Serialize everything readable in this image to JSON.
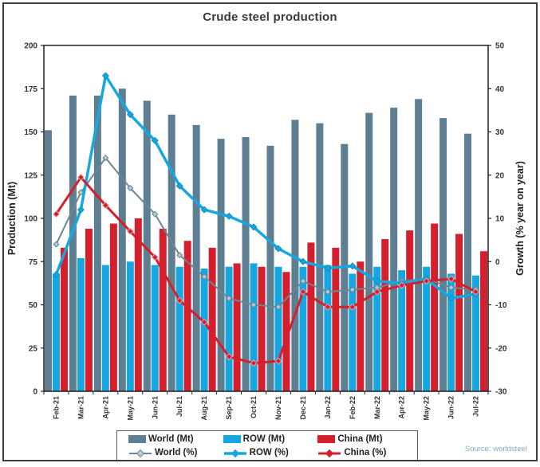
{
  "chart": {
    "title": "Crude steel production"
  },
  "source": {
    "text": "Source: worldsteel"
  },
  "colors": {
    "world_bar": "#5e7f92",
    "row_bar": "#17a7e0",
    "china_bar": "#d41f2d",
    "world_line": "#6b8795",
    "world_marker_fill": "#bcc7cd",
    "row_line": "#17a7e0",
    "row_marker_fill": "#17a7e0",
    "china_line": "#d41f2d",
    "china_marker_fill": "#d41f2d",
    "axis": "#1f1f1f",
    "tick_text": "#333333",
    "title_text": "#3a3a3a",
    "source_text": "#8aa9ba"
  },
  "legend": {
    "items": [
      {
        "label": "World (Mt)",
        "type": "bar",
        "color": "#5e7f92"
      },
      {
        "label": "ROW (Mt)",
        "type": "bar",
        "color": "#17a7e0"
      },
      {
        "label": "China (Mt)",
        "type": "bar",
        "color": "#d41f2d"
      },
      {
        "label": "World (%)",
        "type": "line",
        "color": "#6b8795",
        "marker_fill": "#bcc7cd",
        "width": 2
      },
      {
        "label": "ROW (%)",
        "type": "line",
        "color": "#17a7e0",
        "marker_fill": "#17a7e0",
        "width": 3.5
      },
      {
        "label": "China (%)",
        "type": "line",
        "color": "#d41f2d",
        "marker_fill": "#d41f2d",
        "width": 3
      }
    ]
  },
  "chart_data": {
    "type": "combo-bar-line",
    "title": "Crude steel production",
    "xlabel": "",
    "ylabel_left": "Production (Mt)",
    "ylabel_right": "Growth (% year on year)",
    "ylim_left": [
      0,
      200
    ],
    "ylim_right": [
      -30,
      50
    ],
    "left_ticks": [
      0,
      25,
      50,
      75,
      100,
      125,
      150,
      175,
      200
    ],
    "right_ticks": [
      -30,
      -20,
      -10,
      0,
      10,
      20,
      30,
      40,
      50
    ],
    "grid": false,
    "legend_position": "bottom",
    "categories": [
      "Feb-21",
      "Mar-21",
      "Apr-21",
      "May-21",
      "Jun-21",
      "Jul-21",
      "Aug-21",
      "Sep-21",
      "Oct-21",
      "Nov-21",
      "Dec-21",
      "Jan-22",
      "Feb-22",
      "Mar-22",
      "Apr-22",
      "May-22",
      "Jun-22",
      "Jul-22"
    ],
    "bar_series": [
      {
        "name": "World (Mt)",
        "axis": "left",
        "color": "#5e7f92",
        "values": [
          151,
          171,
          171,
          175,
          168,
          160,
          154,
          146,
          147,
          142,
          157,
          155,
          143,
          161,
          164,
          169,
          158,
          149
        ]
      },
      {
        "name": "ROW (Mt)",
        "axis": "left",
        "color": "#17a7e0",
        "values": [
          68,
          77,
          73,
          75,
          73,
          72,
          71,
          72,
          74,
          72,
          72,
          73,
          68,
          72,
          70,
          72,
          68,
          67
        ]
      },
      {
        "name": "China (Mt)",
        "axis": "left",
        "color": "#d41f2d",
        "values": [
          83,
          94,
          97,
          100,
          94,
          87,
          83,
          74,
          72,
          69,
          86,
          83,
          75,
          88,
          93,
          97,
          91,
          81
        ]
      }
    ],
    "line_series": [
      {
        "name": "World (%)",
        "axis": "right",
        "color": "#6b8795",
        "marker_fill": "#bcc7cd",
        "stroke_width": 2,
        "values": [
          4,
          16,
          24,
          17,
          11,
          1.5,
          -3.5,
          -8.5,
          -10,
          -10.5,
          -4.5,
          -7,
          -6.5,
          -6,
          -4.5,
          -4,
          -6,
          -6.5
        ]
      },
      {
        "name": "ROW (%)",
        "axis": "right",
        "color": "#17a7e0",
        "marker_fill": "#17a7e0",
        "stroke_width": 3.5,
        "values": [
          -3,
          12,
          43,
          34,
          28,
          17.5,
          12,
          10.5,
          8,
          3,
          0,
          -1.5,
          -1,
          -4.5,
          -5,
          -4,
          -8.5,
          -7.5
        ]
      },
      {
        "name": "China (%)",
        "axis": "right",
        "color": "#d41f2d",
        "marker_fill": "#d41f2d",
        "stroke_width": 3,
        "values": [
          11,
          19.5,
          13,
          7,
          1,
          -9,
          -14,
          -22,
          -23.5,
          -23,
          -7,
          -10.5,
          -10.5,
          -7,
          -5.5,
          -4.5,
          -4,
          -7
        ]
      }
    ]
  }
}
